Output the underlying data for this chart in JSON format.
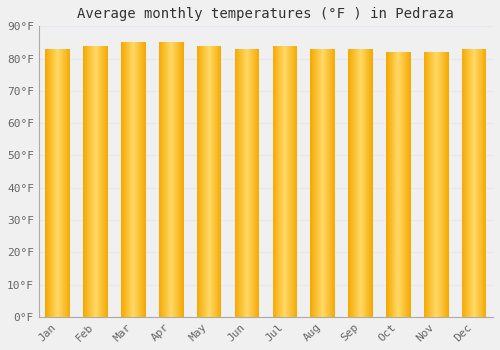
{
  "title": "Average monthly temperatures (°F ) in Pedraza",
  "months": [
    "Jan",
    "Feb",
    "Mar",
    "Apr",
    "May",
    "Jun",
    "Jul",
    "Aug",
    "Sep",
    "Oct",
    "Nov",
    "Dec"
  ],
  "values": [
    83,
    84,
    85,
    85,
    84,
    83,
    84,
    83,
    83,
    82,
    82,
    83
  ],
  "ylim": [
    0,
    90
  ],
  "yticks": [
    0,
    10,
    20,
    30,
    40,
    50,
    60,
    70,
    80,
    90
  ],
  "bar_color_center": "#FFD966",
  "bar_color_edge": "#F5A800",
  "background_color": "#f0f0f0",
  "grid_color": "#e8e8ee",
  "title_fontsize": 10,
  "tick_fontsize": 8,
  "bar_width": 0.65,
  "n_gradient_steps": 50
}
